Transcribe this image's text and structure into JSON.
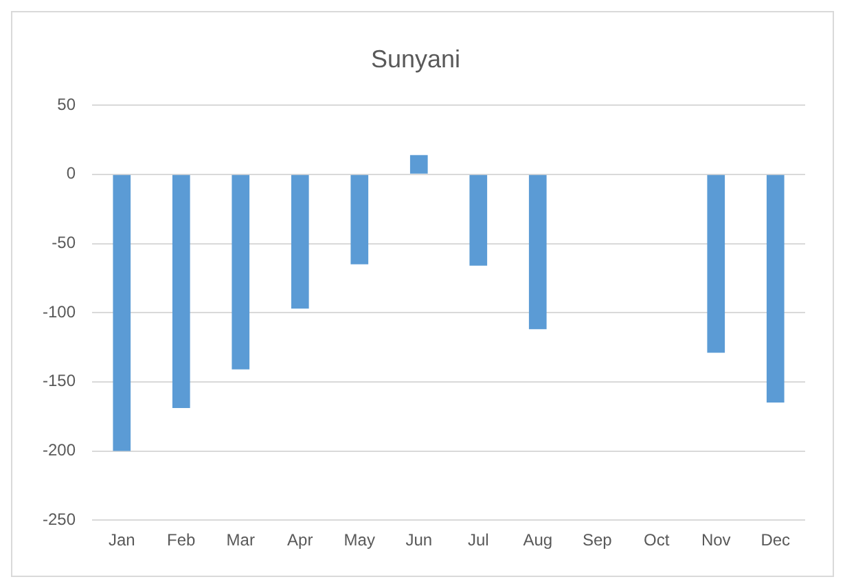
{
  "chart_data": {
    "type": "bar",
    "title": "Sunyani",
    "categories": [
      "Jan",
      "Feb",
      "Mar",
      "Apr",
      "May",
      "Jun",
      "Jul",
      "Aug",
      "Sep",
      "Oct",
      "Nov",
      "Dec"
    ],
    "values": [
      -200,
      -169,
      -141,
      -97,
      -65,
      14,
      -66,
      -112,
      null,
      null,
      -129,
      -165
    ],
    "color": "#5b9bd5",
    "ylim": [
      -250,
      50
    ],
    "yticks": [
      -250,
      -200,
      -150,
      -100,
      -50,
      0,
      50
    ],
    "grid": "y"
  }
}
